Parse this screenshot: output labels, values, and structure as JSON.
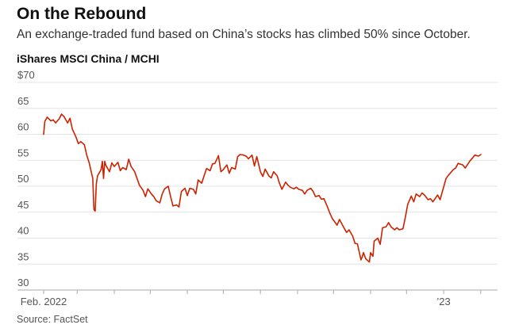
{
  "header": {
    "title": "On the Rebound",
    "subtitle": "An exchange-traded fund based on China’s stocks has climbed 50% since October.",
    "series_label": "iShares MSCI China / MCHI"
  },
  "footer": {
    "source": "Source: FactSet"
  },
  "colors": {
    "line": "#cc2200",
    "grid": "#e3e3e3",
    "axis": "#aaaaaa"
  },
  "chart_data": {
    "type": "line",
    "title": "On the Rebound",
    "subtitle": "An exchange-traded fund based on China’s stocks has climbed 50% since October.",
    "series_label": "iShares MSCI China / MCHI",
    "source": "Source: FactSet",
    "ylim": [
      30,
      70
    ],
    "yticks": [
      30,
      35,
      40,
      45,
      50,
      55,
      60,
      65,
      70
    ],
    "ytick_labels": [
      "30",
      "35",
      "40",
      "45",
      "50",
      "55",
      "60",
      "65",
      "$70"
    ],
    "xlim": [
      "2022-02-01",
      "2023-02-15"
    ],
    "xticks": [
      "2022-02-01",
      "2022-03-01",
      "2022-04-01",
      "2022-05-01",
      "2022-06-01",
      "2022-07-01",
      "2022-08-01",
      "2022-09-01",
      "2022-10-01",
      "2022-11-01",
      "2022-12-01",
      "2023-01-01",
      "2023-02-01"
    ],
    "xtick_labels": [
      "Feb. 2022",
      "",
      "",
      "",
      "",
      "",
      "",
      "",
      "",
      "",
      "",
      "’23",
      ""
    ],
    "grid": true,
    "series": [
      {
        "values": [
          [
            "2022-02-01",
            60.0
          ],
          [
            "2022-02-02",
            62.5
          ],
          [
            "2022-02-04",
            63.3
          ],
          [
            "2022-02-07",
            62.6
          ],
          [
            "2022-02-09",
            62.8
          ],
          [
            "2022-02-11",
            62.2
          ],
          [
            "2022-02-14",
            63.0
          ],
          [
            "2022-02-16",
            63.9
          ],
          [
            "2022-02-18",
            63.4
          ],
          [
            "2022-02-21",
            62.2
          ],
          [
            "2022-02-23",
            63.1
          ],
          [
            "2022-02-25",
            61.0
          ],
          [
            "2022-02-28",
            59.5
          ],
          [
            "2022-03-02",
            58.2
          ],
          [
            "2022-03-04",
            58.6
          ],
          [
            "2022-03-07",
            58.0
          ],
          [
            "2022-03-09",
            56.0
          ],
          [
            "2022-03-11",
            54.5
          ],
          [
            "2022-03-14",
            51.5
          ],
          [
            "2022-03-15",
            45.5
          ],
          [
            "2022-03-16",
            45.2
          ],
          [
            "2022-03-17",
            50.5
          ],
          [
            "2022-03-18",
            52.0
          ],
          [
            "2022-03-21",
            53.2
          ],
          [
            "2022-03-22",
            54.8
          ],
          [
            "2022-03-23",
            51.5
          ],
          [
            "2022-03-24",
            54.8
          ],
          [
            "2022-03-25",
            54.0
          ],
          [
            "2022-03-28",
            52.8
          ],
          [
            "2022-03-30",
            54.5
          ],
          [
            "2022-04-01",
            53.8
          ],
          [
            "2022-04-04",
            54.6
          ],
          [
            "2022-04-06",
            53.0
          ],
          [
            "2022-04-08",
            53.6
          ],
          [
            "2022-04-11",
            53.2
          ],
          [
            "2022-04-13",
            55.2
          ],
          [
            "2022-04-15",
            53.8
          ],
          [
            "2022-04-18",
            52.8
          ],
          [
            "2022-04-20",
            51.5
          ],
          [
            "2022-04-22",
            50.2
          ],
          [
            "2022-04-25",
            49.2
          ],
          [
            "2022-04-27",
            48.0
          ],
          [
            "2022-04-29",
            49.5
          ],
          [
            "2022-05-02",
            48.5
          ],
          [
            "2022-05-04",
            48.0
          ],
          [
            "2022-05-06",
            47.2
          ],
          [
            "2022-05-09",
            46.8
          ],
          [
            "2022-05-11",
            48.5
          ],
          [
            "2022-05-13",
            49.5
          ],
          [
            "2022-05-16",
            50.0
          ],
          [
            "2022-05-18",
            48.0
          ],
          [
            "2022-05-20",
            46.2
          ],
          [
            "2022-05-23",
            46.4
          ],
          [
            "2022-05-25",
            46.0
          ],
          [
            "2022-05-27",
            49.0
          ],
          [
            "2022-05-30",
            49.6
          ],
          [
            "2022-06-01",
            48.2
          ],
          [
            "2022-06-03",
            49.6
          ],
          [
            "2022-06-06",
            49.4
          ],
          [
            "2022-06-08",
            48.5
          ],
          [
            "2022-06-10",
            51.2
          ],
          [
            "2022-06-13",
            50.6
          ],
          [
            "2022-06-15",
            52.0
          ],
          [
            "2022-06-17",
            53.4
          ],
          [
            "2022-06-20",
            53.0
          ],
          [
            "2022-06-22",
            54.3
          ],
          [
            "2022-06-24",
            54.4
          ],
          [
            "2022-06-27",
            55.9
          ],
          [
            "2022-06-29",
            52.8
          ],
          [
            "2022-07-01",
            53.2
          ],
          [
            "2022-07-04",
            54.1
          ],
          [
            "2022-07-06",
            52.5
          ],
          [
            "2022-07-08",
            53.6
          ],
          [
            "2022-07-11",
            53.3
          ],
          [
            "2022-07-13",
            55.7
          ],
          [
            "2022-07-15",
            56.1
          ],
          [
            "2022-07-18",
            56.0
          ],
          [
            "2022-07-20",
            55.8
          ],
          [
            "2022-07-22",
            55.3
          ],
          [
            "2022-07-25",
            56.0
          ],
          [
            "2022-07-27",
            53.9
          ],
          [
            "2022-07-29",
            55.7
          ],
          [
            "2022-08-01",
            52.8
          ],
          [
            "2022-08-03",
            51.9
          ],
          [
            "2022-08-05",
            53.3
          ],
          [
            "2022-08-08",
            52.0
          ],
          [
            "2022-08-10",
            51.6
          ],
          [
            "2022-08-12",
            52.8
          ],
          [
            "2022-08-15",
            52.0
          ],
          [
            "2022-08-17",
            50.5
          ],
          [
            "2022-08-19",
            49.4
          ],
          [
            "2022-08-22",
            50.8
          ],
          [
            "2022-08-24",
            50.2
          ],
          [
            "2022-08-26",
            49.8
          ],
          [
            "2022-08-29",
            49.5
          ],
          [
            "2022-08-31",
            49.8
          ],
          [
            "2022-09-02",
            49.4
          ],
          [
            "2022-09-05",
            49.2
          ],
          [
            "2022-09-07",
            48.5
          ],
          [
            "2022-09-09",
            49.2
          ],
          [
            "2022-09-12",
            49.6
          ],
          [
            "2022-09-14",
            49.0
          ],
          [
            "2022-09-16",
            48.0
          ],
          [
            "2022-09-19",
            48.2
          ],
          [
            "2022-09-21",
            47.5
          ],
          [
            "2022-09-23",
            47.6
          ],
          [
            "2022-09-26",
            46.0
          ],
          [
            "2022-09-28",
            44.8
          ],
          [
            "2022-09-30",
            43.8
          ],
          [
            "2022-10-04",
            42.5
          ],
          [
            "2022-10-06",
            43.6
          ],
          [
            "2022-10-10",
            41.9
          ],
          [
            "2022-10-12",
            41.1
          ],
          [
            "2022-10-14",
            41.6
          ],
          [
            "2022-10-17",
            40.4
          ],
          [
            "2022-10-19",
            39.0
          ],
          [
            "2022-10-21",
            38.9
          ],
          [
            "2022-10-24",
            35.8
          ],
          [
            "2022-10-25",
            36.4
          ],
          [
            "2022-10-26",
            37.2
          ],
          [
            "2022-10-28",
            36.0
          ],
          [
            "2022-10-31",
            35.4
          ],
          [
            "2022-11-01",
            37.2
          ],
          [
            "2022-11-03",
            36.5
          ],
          [
            "2022-11-04",
            39.4
          ],
          [
            "2022-11-07",
            40.0
          ],
          [
            "2022-11-09",
            38.8
          ],
          [
            "2022-11-11",
            42.0
          ],
          [
            "2022-11-14",
            42.2
          ],
          [
            "2022-11-16",
            43.0
          ],
          [
            "2022-11-18",
            42.2
          ],
          [
            "2022-11-21",
            41.6
          ],
          [
            "2022-11-23",
            42.0
          ],
          [
            "2022-11-25",
            41.6
          ],
          [
            "2022-11-28",
            41.8
          ],
          [
            "2022-11-30",
            44.0
          ],
          [
            "2022-12-02",
            46.5
          ],
          [
            "2022-12-05",
            48.1
          ],
          [
            "2022-12-07",
            47.0
          ],
          [
            "2022-12-09",
            48.5
          ],
          [
            "2022-12-12",
            48.0
          ],
          [
            "2022-12-14",
            48.7
          ],
          [
            "2022-12-16",
            48.3
          ],
          [
            "2022-12-19",
            47.4
          ],
          [
            "2022-12-21",
            47.6
          ],
          [
            "2022-12-23",
            47.0
          ],
          [
            "2022-12-27",
            48.3
          ],
          [
            "2022-12-29",
            47.4
          ],
          [
            "2023-01-03",
            51.5
          ],
          [
            "2023-01-05",
            52.1
          ],
          [
            "2023-01-09",
            53.2
          ],
          [
            "2023-01-11",
            53.5
          ],
          [
            "2023-01-13",
            54.4
          ],
          [
            "2023-01-17",
            54.1
          ],
          [
            "2023-01-19",
            53.5
          ],
          [
            "2023-01-23",
            54.9
          ],
          [
            "2023-01-25",
            55.4
          ],
          [
            "2023-01-27",
            56.0
          ],
          [
            "2023-01-30",
            55.8
          ],
          [
            "2023-02-01",
            56.1
          ]
        ]
      }
    ]
  }
}
